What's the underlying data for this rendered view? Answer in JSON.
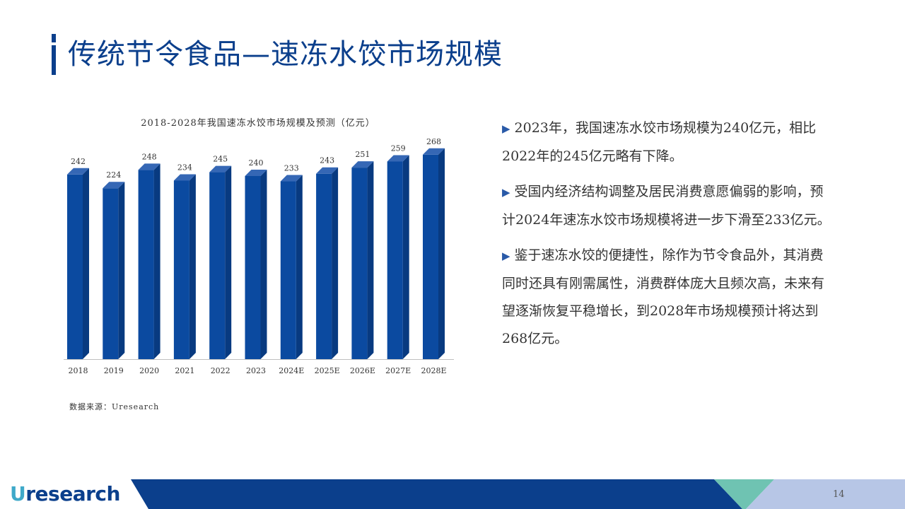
{
  "header": {
    "title": "传统节令食品—速冻水饺市场规模"
  },
  "chart_data": {
    "type": "bar",
    "title": "2018-2028年我国速冻水饺市场规模及预测（亿元）",
    "categories": [
      "2018",
      "2019",
      "2020",
      "2021",
      "2022",
      "2023",
      "2024E",
      "2025E",
      "2026E",
      "2027E",
      "2028E"
    ],
    "values": [
      242,
      224,
      248,
      234,
      245,
      240,
      233,
      243,
      251,
      259,
      268
    ],
    "xlabel": "",
    "ylabel": "",
    "ylim": [
      0,
      290
    ],
    "grid": false,
    "bar_color": "#0b4aa0"
  },
  "source": "数据来源：Uresearch",
  "bullets": [
    "2023年，我国速冻水饺市场规模为240亿元，相比2022年的245亿元略有下降。",
    "受国内经济结构调整及居民消费意愿偏弱的影响，预计2024年速冻水饺市场规模将进一步下滑至233亿元。",
    "鉴于速冻水饺的便捷性，除作为节令食品外，其消费同时还具有刚需属性，消费群体庞大且频次高，未来有望逐渐恢复平稳增长，到2028年市场规模预计将达到268亿元。"
  ],
  "bullet_marker": "▶",
  "footer": {
    "logo_u": "U",
    "logo_rest": "research",
    "page_number": "14",
    "colors": {
      "dark": "#0b3f8c",
      "teal": "#6fc3b2",
      "light": "#b7c6e6"
    }
  },
  "colors": {
    "accent": "#0b3f8c",
    "text": "#333333"
  }
}
